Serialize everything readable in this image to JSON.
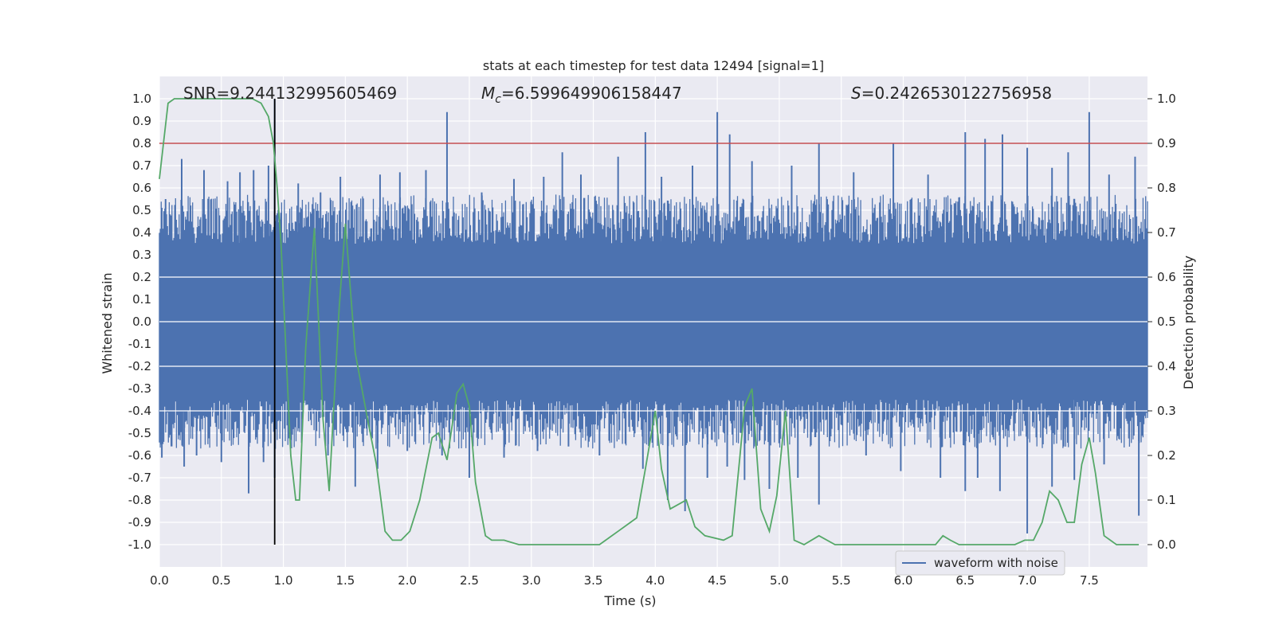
{
  "chart_data": {
    "type": "line",
    "title": "stats at each timestep for test data 12494 [signal=1]",
    "xlabel": "Time (s)",
    "ylabel": "Whitened strain",
    "y2label": "Detection probability",
    "xlim": [
      0.0,
      7.97
    ],
    "ylim": [
      -1.1,
      1.1
    ],
    "y2lim": [
      -0.05,
      1.05
    ],
    "xticks": [
      "0.0",
      "0.5",
      "1.0",
      "1.5",
      "2.0",
      "2.5",
      "3.0",
      "3.5",
      "4.0",
      "4.5",
      "5.0",
      "5.5",
      "6.0",
      "6.5",
      "7.0",
      "7.5"
    ],
    "yticks": [
      "1.0",
      "0.9",
      "0.8",
      "0.7",
      "0.6",
      "0.5",
      "0.4",
      "0.3",
      "0.2",
      "0.1",
      "0.0",
      "-0.1",
      "-0.2",
      "-0.3",
      "-0.4",
      "-0.5",
      "-0.6",
      "-0.7",
      "-0.8",
      "-0.9",
      "-1.0"
    ],
    "y2ticks": [
      "1.0",
      "0.9",
      "0.8",
      "0.7",
      "0.6",
      "0.5",
      "0.4",
      "0.3",
      "0.2",
      "0.1",
      "0.0"
    ],
    "annotations": {
      "snr": "SNR=9.244132995605469",
      "mc_symbol": "M",
      "mc_sub": "c",
      "mc_value": "=6.599649906158447",
      "s_symbol": "S",
      "s_value": "=0.2426530122756958"
    },
    "legend": {
      "label": "waveform with noise",
      "position": "lower-right"
    },
    "threshold": 0.9,
    "event_time": 0.93,
    "waveform": {
      "name": "waveform with noise",
      "band_low": -0.35,
      "band_high": 0.35,
      "spikes_up": [
        [
          0.05,
          0.55
        ],
        [
          0.18,
          0.73
        ],
        [
          0.36,
          0.68
        ],
        [
          0.55,
          0.63
        ],
        [
          0.65,
          0.67
        ],
        [
          0.76,
          0.68
        ],
        [
          0.88,
          0.7
        ],
        [
          0.93,
          1.0
        ],
        [
          1.12,
          0.62
        ],
        [
          1.3,
          0.58
        ],
        [
          1.46,
          0.65
        ],
        [
          1.78,
          0.66
        ],
        [
          1.94,
          0.67
        ],
        [
          2.15,
          0.68
        ],
        [
          2.32,
          0.94
        ],
        [
          2.6,
          0.58
        ],
        [
          2.86,
          0.64
        ],
        [
          3.1,
          0.65
        ],
        [
          3.25,
          0.76
        ],
        [
          3.4,
          0.66
        ],
        [
          3.7,
          0.74
        ],
        [
          3.92,
          0.85
        ],
        [
          4.05,
          0.65
        ],
        [
          4.3,
          0.7
        ],
        [
          4.5,
          0.94
        ],
        [
          4.6,
          0.84
        ],
        [
          4.78,
          0.72
        ],
        [
          5.1,
          0.7
        ],
        [
          5.32,
          0.8
        ],
        [
          5.6,
          0.67
        ],
        [
          5.92,
          0.8
        ],
        [
          6.2,
          0.66
        ],
        [
          6.5,
          0.85
        ],
        [
          6.66,
          0.82
        ],
        [
          6.8,
          0.84
        ],
        [
          7.0,
          0.78
        ],
        [
          7.2,
          0.69
        ],
        [
          7.33,
          0.76
        ],
        [
          7.5,
          0.94
        ],
        [
          7.66,
          0.66
        ],
        [
          7.87,
          0.74
        ]
      ],
      "spikes_down": [
        [
          0.02,
          -0.61
        ],
        [
          0.2,
          -0.65
        ],
        [
          0.3,
          -0.6
        ],
        [
          0.5,
          -0.63
        ],
        [
          0.72,
          -0.77
        ],
        [
          0.84,
          -0.63
        ],
        [
          0.93,
          -0.7
        ],
        [
          1.36,
          -0.6
        ],
        [
          1.58,
          -0.74
        ],
        [
          1.76,
          -0.66
        ],
        [
          2.0,
          -0.58
        ],
        [
          2.28,
          -0.6
        ],
        [
          2.5,
          -0.7
        ],
        [
          2.78,
          -0.61
        ],
        [
          3.05,
          -0.58
        ],
        [
          3.3,
          -0.56
        ],
        [
          3.55,
          -0.6
        ],
        [
          3.9,
          -0.66
        ],
        [
          4.1,
          -0.8
        ],
        [
          4.24,
          -0.85
        ],
        [
          4.42,
          -0.7
        ],
        [
          4.58,
          -0.65
        ],
        [
          4.72,
          -0.71
        ],
        [
          4.92,
          -0.75
        ],
        [
          5.15,
          -0.7
        ],
        [
          5.32,
          -0.82
        ],
        [
          5.7,
          -0.6
        ],
        [
          5.98,
          -0.67
        ],
        [
          6.3,
          -0.7
        ],
        [
          6.5,
          -0.76
        ],
        [
          6.6,
          -0.7
        ],
        [
          6.78,
          -0.76
        ],
        [
          7.0,
          -0.95
        ],
        [
          7.2,
          -0.74
        ],
        [
          7.38,
          -0.71
        ],
        [
          7.62,
          -0.64
        ],
        [
          7.9,
          -0.87
        ]
      ]
    },
    "detection": {
      "x": [
        0.0,
        0.07,
        0.12,
        0.18,
        0.4,
        0.65,
        0.75,
        0.82,
        0.88,
        0.92,
        0.95,
        0.98,
        1.02,
        1.06,
        1.1,
        1.13,
        1.18,
        1.25,
        1.32,
        1.37,
        1.45,
        1.5,
        1.58,
        1.68,
        1.75,
        1.82,
        1.88,
        1.95,
        2.02,
        2.1,
        2.2,
        2.25,
        2.32,
        2.4,
        2.45,
        2.5,
        2.55,
        2.63,
        2.68,
        2.78,
        2.9,
        3.2,
        3.55,
        3.6,
        3.7,
        3.8,
        3.85,
        3.92,
        4.0,
        4.05,
        4.12,
        4.25,
        4.32,
        4.4,
        4.55,
        4.62,
        4.68,
        4.72,
        4.78,
        4.85,
        4.92,
        4.98,
        5.05,
        5.12,
        5.2,
        5.32,
        5.45,
        5.6,
        5.8,
        6.0,
        6.2,
        6.26,
        6.32,
        6.38,
        6.45,
        6.6,
        6.8,
        6.9,
        6.98,
        7.05,
        7.12,
        7.18,
        7.25,
        7.32,
        7.38,
        7.44,
        7.5,
        7.55,
        7.62,
        7.72,
        7.9
      ],
      "y": [
        0.82,
        0.99,
        1.0,
        1.0,
        1.0,
        1.0,
        1.0,
        0.99,
        0.96,
        0.9,
        0.8,
        0.68,
        0.44,
        0.2,
        0.1,
        0.1,
        0.44,
        0.71,
        0.28,
        0.12,
        0.53,
        0.72,
        0.43,
        0.28,
        0.18,
        0.03,
        0.01,
        0.01,
        0.03,
        0.1,
        0.24,
        0.25,
        0.19,
        0.34,
        0.36,
        0.31,
        0.14,
        0.02,
        0.01,
        0.01,
        0.0,
        0.0,
        0.0,
        0.01,
        0.03,
        0.05,
        0.06,
        0.17,
        0.3,
        0.17,
        0.08,
        0.1,
        0.04,
        0.02,
        0.01,
        0.02,
        0.19,
        0.31,
        0.35,
        0.08,
        0.03,
        0.11,
        0.3,
        0.01,
        0.0,
        0.02,
        0.0,
        0.0,
        0.0,
        0.0,
        0.0,
        0.0,
        0.02,
        0.01,
        0.0,
        0.0,
        0.0,
        0.0,
        0.01,
        0.01,
        0.05,
        0.12,
        0.1,
        0.05,
        0.05,
        0.18,
        0.24,
        0.16,
        0.02,
        0.0,
        0.0
      ]
    }
  }
}
